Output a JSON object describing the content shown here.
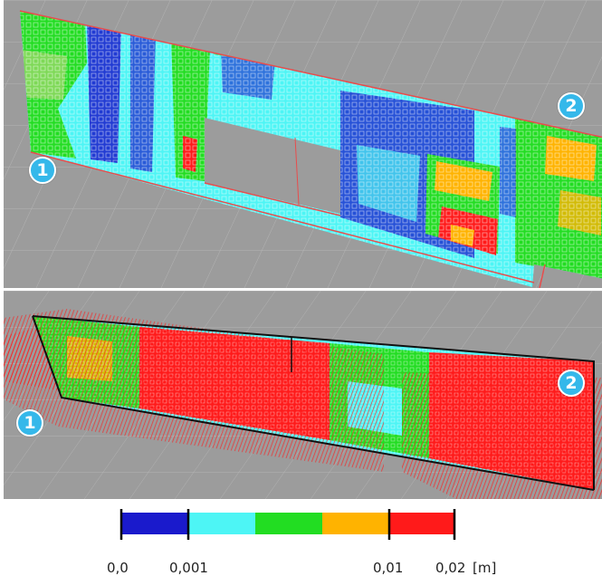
{
  "view_top": {
    "marker_start": "1",
    "marker_end": "2"
  },
  "view_bottom": {
    "marker_start": "1",
    "marker_end": "2"
  },
  "legend": {
    "unit": "[m]",
    "colors": [
      "#1a1acc",
      "#4df5f5",
      "#22dd22",
      "#ffb300",
      "#ff1a1a"
    ],
    "tick_labels": {
      "t0": "0,0",
      "t1": "0,001",
      "t2": "0,01",
      "t3": "0,02"
    }
  }
}
